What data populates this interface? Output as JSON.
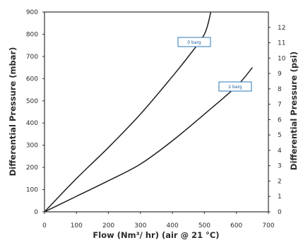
{
  "chart_data": {
    "type": "line",
    "xlabel": "Flow (Nm³/ hr) (air @ 21 °C)",
    "ylabel": "Differential Pressure (mbar)",
    "y2label": "Differential Pressure (psi)",
    "xlim": [
      0,
      700
    ],
    "ylim": [
      0,
      900
    ],
    "y2lim": [
      0,
      13
    ],
    "xticks": [
      0,
      100,
      200,
      300,
      400,
      500,
      600,
      700
    ],
    "yticks": [
      0,
      100,
      200,
      300,
      400,
      500,
      600,
      700,
      800,
      900
    ],
    "y2ticks": [
      0,
      1,
      2,
      3,
      4,
      5,
      6,
      7,
      8,
      9,
      10,
      11,
      12
    ],
    "grid": false,
    "series": [
      {
        "name": "0 barg",
        "x": [
          0,
          100,
          200,
          300,
          400,
          450,
          500,
          520
        ],
        "y": [
          0,
          150,
          290,
          440,
          610,
          700,
          800,
          900
        ]
      },
      {
        "name": "2 barg",
        "x": [
          0,
          100,
          200,
          300,
          400,
          500,
          600,
          650
        ],
        "y": [
          0,
          70,
          140,
          215,
          320,
          440,
          565,
          650
        ]
      }
    ]
  }
}
